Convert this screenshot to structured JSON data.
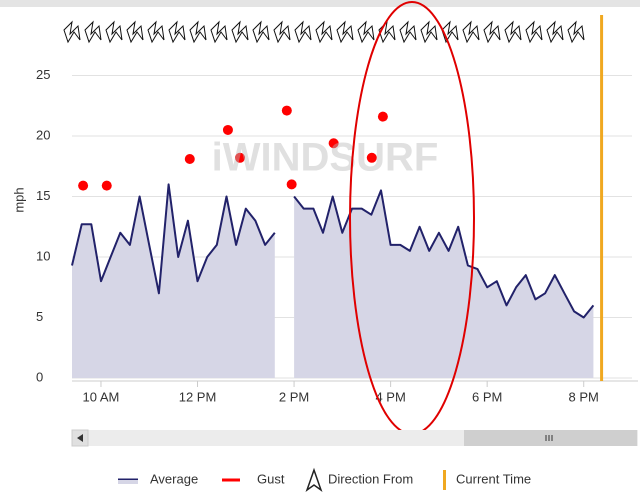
{
  "chart_data": {
    "type": "line",
    "y_label": "mph",
    "watermark": "iWINDSURF",
    "ylim": [
      0,
      30
    ],
    "yticks": [
      0,
      5,
      10,
      15,
      20,
      25
    ],
    "xlim": [
      9.4,
      21
    ],
    "xticks": [
      {
        "value": 10,
        "label": "10 AM"
      },
      {
        "value": 12,
        "label": "12 PM"
      },
      {
        "value": 14,
        "label": "2 PM"
      },
      {
        "value": 16,
        "label": "4 PM"
      },
      {
        "value": 18,
        "label": "6 PM"
      },
      {
        "value": 20,
        "label": "8 PM"
      }
    ],
    "grid": true,
    "series": [
      {
        "name": "Average",
        "color": "#22226a",
        "fill": "#d6d6e6",
        "x": [
          9.4,
          9.6,
          9.8,
          10.0,
          10.2,
          10.4,
          10.6,
          10.8,
          11.0,
          11.2,
          11.4,
          11.6,
          11.8,
          12.0,
          12.2,
          12.4,
          12.6,
          12.8,
          13.0,
          13.2,
          13.4,
          13.6,
          13.8,
          14.0,
          14.2,
          14.4,
          14.6,
          14.8,
          15.0,
          15.2,
          15.4,
          15.6,
          15.8,
          16.0,
          16.2,
          16.4,
          16.6,
          16.8,
          17.0,
          17.2,
          17.4,
          17.6,
          17.8,
          18.0,
          18.2,
          18.4,
          18.6,
          18.8,
          19.0,
          19.2,
          19.4,
          19.6,
          19.8,
          20.0,
          20.2
        ],
        "values": [
          9.3,
          12.7,
          12.7,
          8,
          10,
          12,
          11,
          15,
          11,
          7,
          16,
          10,
          13,
          8,
          10,
          11,
          15,
          11,
          14,
          13,
          11,
          12,
          null,
          15,
          14,
          14,
          12,
          15,
          12,
          14,
          14,
          13.5,
          15.5,
          11,
          11,
          10.5,
          12.5,
          10.5,
          12,
          10.5,
          12.5,
          9.3,
          9,
          7.5,
          8,
          6,
          7.5,
          8.5,
          6.5,
          7,
          8.5,
          7,
          5.5,
          5,
          6
        ]
      },
      {
        "name": "Gust",
        "color": "#ff0000",
        "x": [
          9.63,
          10.12,
          11.84,
          12.63,
          12.88,
          13.85,
          13.95,
          14.82,
          15.61,
          15.84
        ],
        "values": [
          15.9,
          15.9,
          18.1,
          20.5,
          18.2,
          22.1,
          16,
          19.4,
          18.2,
          21.6
        ]
      }
    ],
    "direction_label": "Direction From",
    "current_time_label": "Current Time",
    "current_time": 20.37,
    "current_time_color": "#f0a820"
  }
}
